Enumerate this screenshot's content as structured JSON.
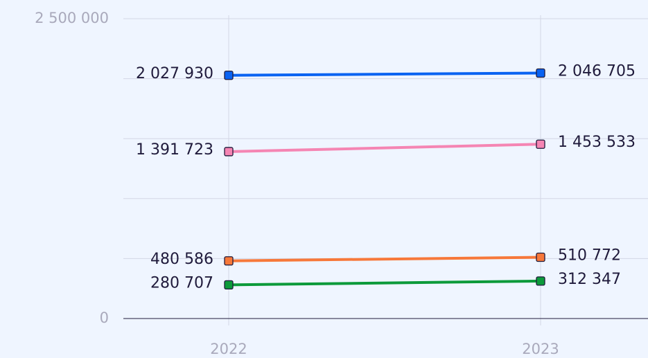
{
  "chart_data": {
    "type": "line",
    "categories": [
      "2022",
      "2023"
    ],
    "series": [
      {
        "color": "#0a63f2",
        "values": [
          2027930,
          2046705
        ],
        "value_labels": [
          "2 027 930",
          "2 046 705"
        ]
      },
      {
        "color": "#f585b3",
        "values": [
          1391723,
          1453533
        ],
        "value_labels": [
          "1 391 723",
          "1 453 533"
        ]
      },
      {
        "color": "#f7783a",
        "values": [
          480586,
          510772
        ],
        "value_labels": [
          "480 586",
          "510 772"
        ]
      },
      {
        "color": "#0c9a3a",
        "values": [
          280707,
          312347
        ],
        "value_labels": [
          "280 707",
          "312 347"
        ]
      }
    ],
    "ylim": [
      0,
      2500000
    ],
    "yticks": [
      0,
      {
        "value": 2500000,
        "label": "2 500 000"
      }
    ],
    "ygrid": [
      500000,
      1000000,
      1500000,
      2000000
    ],
    "grid": true
  }
}
